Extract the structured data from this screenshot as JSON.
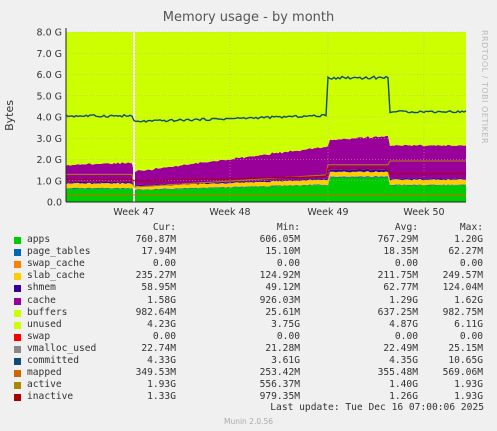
{
  "chart_data": {
    "type": "area",
    "title": "Memory usage - by month",
    "ylabel": "Bytes",
    "ylim": [
      0,
      8.0
    ],
    "y_ticks": [
      "0.0",
      "1.0 G",
      "2.0 G",
      "3.0 G",
      "4.0 G",
      "5.0 G",
      "6.0 G",
      "7.0 G",
      "8.0 G"
    ],
    "x_ticks": [
      "Week 47",
      "Week 48",
      "Week 49",
      "Week 50"
    ],
    "stacked_series_order": [
      "apps",
      "page_tables",
      "swap_cache",
      "slab_cache",
      "shmem",
      "cache",
      "buffers",
      "unused"
    ],
    "line_series": [
      "committed",
      "mapped",
      "active",
      "inactive"
    ],
    "colors": {
      "apps": "#00cc00",
      "page_tables": "#0066b3",
      "swap_cache": "#ff8000",
      "slab_cache": "#ffcc00",
      "shmem": "#330099",
      "cache": "#990099",
      "buffers": "#ccff00",
      "unused": "#ccff00",
      "swap": "#ff0000",
      "vmalloc_used": "#888888",
      "committed": "#0f4c75",
      "mapped": "#cc6600",
      "active": "#aa8800",
      "inactive": "#aa0000"
    }
  },
  "legend": {
    "headers": {
      "cur": "Cur:",
      "min": "Min:",
      "avg": "Avg:",
      "max": "Max:"
    },
    "rows": [
      {
        "name": "apps",
        "color": "#00cc00",
        "cur": "760.87M",
        "min": "606.05M",
        "avg": "767.29M",
        "max": "1.20G"
      },
      {
        "name": "page_tables",
        "color": "#0066b3",
        "cur": "17.94M",
        "min": "15.10M",
        "avg": "18.35M",
        "max": "62.27M"
      },
      {
        "name": "swap_cache",
        "color": "#ff8000",
        "cur": "0.00",
        "min": "0.00",
        "avg": "0.00",
        "max": "0.00"
      },
      {
        "name": "slab_cache",
        "color": "#ffcc00",
        "cur": "235.27M",
        "min": "124.92M",
        "avg": "211.75M",
        "max": "249.57M"
      },
      {
        "name": "shmem",
        "color": "#330099",
        "cur": "58.95M",
        "min": "49.12M",
        "avg": "62.77M",
        "max": "124.04M"
      },
      {
        "name": "cache",
        "color": "#990099",
        "cur": "1.58G",
        "min": "926.03M",
        "avg": "1.29G",
        "max": "1.62G"
      },
      {
        "name": "buffers",
        "color": "#ccff00",
        "cur": "982.64M",
        "min": "25.61M",
        "avg": "637.25M",
        "max": "982.75M"
      },
      {
        "name": "unused",
        "color": "#ccff00",
        "cur": "4.23G",
        "min": "3.75G",
        "avg": "4.87G",
        "max": "6.11G"
      },
      {
        "name": "swap",
        "color": "#ff0000",
        "cur": "0.00",
        "min": "0.00",
        "avg": "0.00",
        "max": "0.00"
      },
      {
        "name": "vmalloc_used",
        "color": "#888888",
        "cur": "22.74M",
        "min": "21.28M",
        "avg": "22.49M",
        "max": "25.15M"
      },
      {
        "name": "committed",
        "color": "#0f4c75",
        "cur": "4.33G",
        "min": "3.61G",
        "avg": "4.35G",
        "max": "10.65G"
      },
      {
        "name": "mapped",
        "color": "#cc6600",
        "cur": "349.53M",
        "min": "253.42M",
        "avg": "355.48M",
        "max": "569.06M"
      },
      {
        "name": "active",
        "color": "#aa8800",
        "cur": "1.93G",
        "min": "556.37M",
        "avg": "1.40G",
        "max": "1.93G"
      },
      {
        "name": "inactive",
        "color": "#aa0000",
        "cur": "1.33G",
        "min": "979.35M",
        "avg": "1.26G",
        "max": "1.93G"
      }
    ]
  },
  "side_text": "RRDTOOL / TOBI OETIKER",
  "footer": {
    "last_update": "Last update: Tue Dec 16 07:00:06 2025",
    "munin": "Munin 2.0.56"
  }
}
